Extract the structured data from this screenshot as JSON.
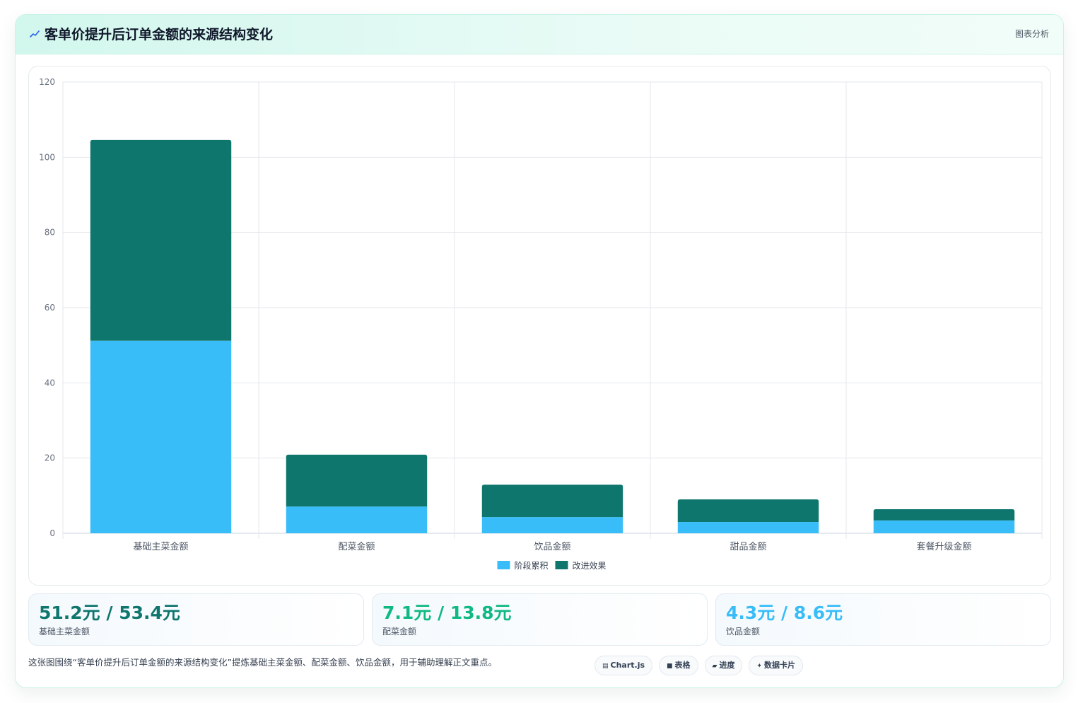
{
  "header": {
    "title": "客单价提升后订单金额的来源结构变化",
    "tag": "图表分析",
    "icon": "sparkline-icon"
  },
  "colors": {
    "stage": "#38bdf8",
    "effect": "#0f766e",
    "green": "#10b981",
    "teal": "#0f766e",
    "sky": "#38bdf8"
  },
  "chart_data": {
    "type": "bar",
    "stacked": true,
    "categories": [
      "基础主菜金额",
      "配菜金额",
      "饮品金额",
      "甜品金额",
      "套餐升级金额"
    ],
    "series": [
      {
        "name": "阶段累积",
        "values": [
          51.2,
          7.1,
          4.3,
          3.0,
          3.4
        ]
      },
      {
        "name": "改进效果",
        "values": [
          53.4,
          13.8,
          8.6,
          6.0,
          3.0
        ]
      }
    ],
    "ylim": [
      0,
      120
    ],
    "yticks": [
      0,
      20,
      40,
      60,
      80,
      100,
      120
    ],
    "grid": true,
    "legend": "bottom-center"
  },
  "stats": [
    {
      "value": "51.2元 / 53.4元",
      "label": "基础主菜金额",
      "color": "#0f766e"
    },
    {
      "value": "7.1元 / 13.8元",
      "label": "配菜金额",
      "color": "#10b981"
    },
    {
      "value": "4.3元 / 8.6元",
      "label": "饮品金额",
      "color": "#38bdf8"
    }
  ],
  "footer": {
    "note": "这张图围绕“客单价提升后订单金额的来源结构变化”提炼基础主菜金额、配菜金额、饮品金额，用于辅助理解正文重点。",
    "chips": [
      {
        "icon": "▤",
        "label": "Chart.js"
      },
      {
        "icon": "■",
        "label": "表格"
      },
      {
        "icon": "▰",
        "label": "进度"
      },
      {
        "icon": "✦",
        "label": "数据卡片"
      }
    ]
  }
}
